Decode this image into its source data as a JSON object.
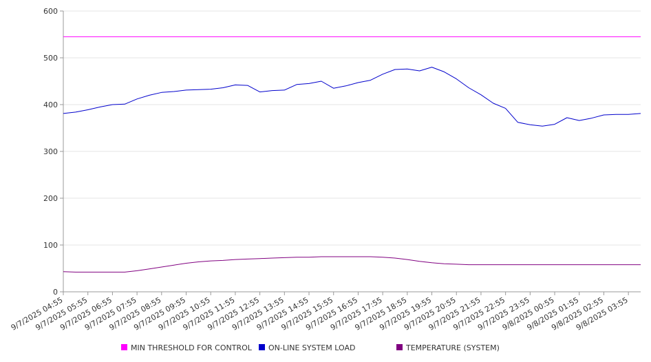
{
  "chart_data": {
    "type": "line",
    "title": "",
    "xlabel": "",
    "ylabel": "",
    "ylim": [
      0,
      600
    ],
    "y_ticks": [
      0,
      100,
      200,
      300,
      400,
      500,
      600
    ],
    "grid": true,
    "legend_placement": "bottom",
    "x_tick_labels": [
      "9/7/2025 04:55",
      "9/7/2025 05:55",
      "9/7/2025 06:55",
      "9/7/2025 07:55",
      "9/7/2025 08:55",
      "9/7/2025 09:55",
      "9/7/2025 10:55",
      "9/7/2025 11:55",
      "9/7/2025 12:55",
      "9/7/2025 13:55",
      "9/7/2025 14:55",
      "9/7/2025 15:55",
      "9/7/2025 16:55",
      "9/7/2025 17:55",
      "9/7/2025 18:55",
      "9/7/2025 19:55",
      "9/7/2025 20:55",
      "9/7/2025 21:55",
      "9/7/2025 22:55",
      "9/7/2025 23:55",
      "9/8/2025 00:55",
      "9/8/2025 01:55",
      "9/8/2025 02:55",
      "9/8/2025 03:55"
    ],
    "x": [
      "9/7/2025 04:55",
      "9/7/2025 05:25",
      "9/7/2025 05:55",
      "9/7/2025 06:25",
      "9/7/2025 06:55",
      "9/7/2025 07:25",
      "9/7/2025 07:55",
      "9/7/2025 08:25",
      "9/7/2025 08:55",
      "9/7/2025 09:25",
      "9/7/2025 09:55",
      "9/7/2025 10:25",
      "9/7/2025 10:55",
      "9/7/2025 11:25",
      "9/7/2025 11:55",
      "9/7/2025 12:25",
      "9/7/2025 12:55",
      "9/7/2025 13:25",
      "9/7/2025 13:55",
      "9/7/2025 14:25",
      "9/7/2025 14:55",
      "9/7/2025 15:25",
      "9/7/2025 15:55",
      "9/7/2025 16:25",
      "9/7/2025 16:55",
      "9/7/2025 17:25",
      "9/7/2025 17:55",
      "9/7/2025 18:25",
      "9/7/2025 18:55",
      "9/7/2025 19:25",
      "9/7/2025 19:55",
      "9/7/2025 20:25",
      "9/7/2025 20:55",
      "9/7/2025 21:25",
      "9/7/2025 21:55",
      "9/7/2025 22:25",
      "9/7/2025 22:55",
      "9/7/2025 23:25",
      "9/7/2025 23:55",
      "9/8/2025 00:25",
      "9/8/2025 00:55",
      "9/8/2025 01:25",
      "9/8/2025 01:55",
      "9/8/2025 02:25",
      "9/8/2025 02:55",
      "9/8/2025 03:25",
      "9/8/2025 03:55",
      "9/8/2025 04:25"
    ],
    "series": [
      {
        "name": "MIN THRESHOLD FOR CONTROL",
        "color": "#ff00ff",
        "values": [
          545,
          545,
          545,
          545,
          545,
          545,
          545,
          545,
          545,
          545,
          545,
          545,
          545,
          545,
          545,
          545,
          545,
          545,
          545,
          545,
          545,
          545,
          545,
          545,
          545,
          545,
          545,
          545,
          545,
          545,
          545,
          545,
          545,
          545,
          545,
          545,
          545,
          545,
          545,
          545,
          545,
          545,
          545,
          545,
          545,
          545,
          545,
          545
        ]
      },
      {
        "name": "ON-LINE SYSTEM LOAD",
        "color": "#0000cc",
        "values": [
          381,
          384,
          389,
          395,
          400,
          401,
          412,
          420,
          426,
          428,
          431,
          432,
          433,
          436,
          442,
          441,
          427,
          430,
          431,
          443,
          445,
          450,
          435,
          440,
          447,
          452,
          465,
          475,
          476,
          472,
          480,
          470,
          455,
          436,
          421,
          403,
          392,
          362,
          357,
          354,
          358,
          372,
          366,
          371,
          378,
          379,
          379,
          381
        ]
      },
      {
        "name": "TEMPERATURE (SYSTEM)",
        "color": "#800080",
        "values": [
          43,
          42,
          42,
          42,
          42,
          42,
          45,
          49,
          53,
          57,
          61,
          64,
          66,
          67,
          69,
          70,
          71,
          72,
          73,
          74,
          74,
          75,
          75,
          75,
          75,
          75,
          74,
          72,
          69,
          65,
          62,
          60,
          59,
          58,
          58,
          58,
          58,
          58,
          58,
          58,
          58,
          58,
          58,
          58,
          58,
          58,
          58,
          58
        ]
      }
    ]
  }
}
